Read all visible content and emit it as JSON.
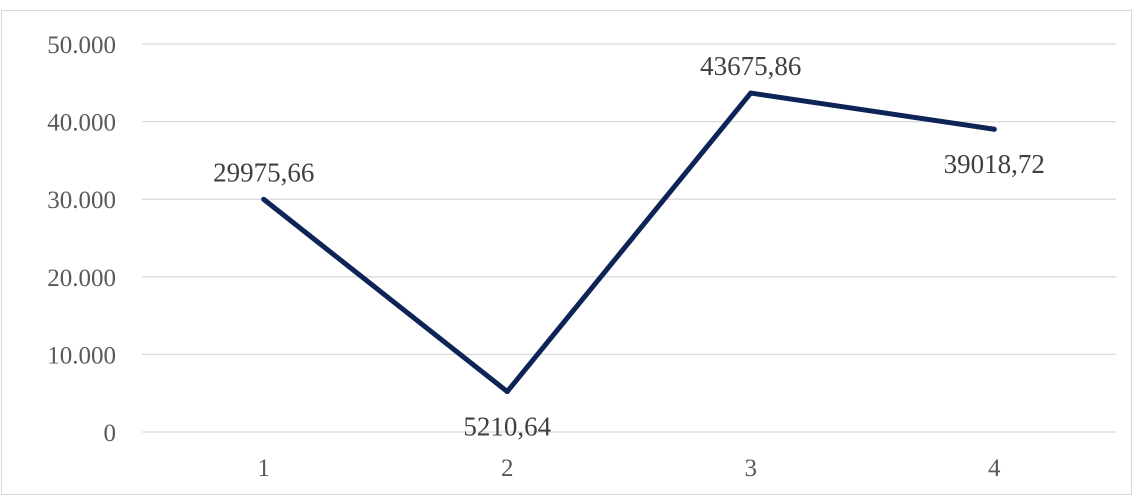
{
  "chart_data": {
    "type": "line",
    "title": "",
    "xlabel": "",
    "ylabel": "",
    "categories": [
      "1",
      "2",
      "3",
      "4"
    ],
    "series": [
      {
        "values": [
          29975.66,
          5210.64,
          43675.86,
          39018.72
        ],
        "data_labels": [
          "29975,66",
          "5210,64",
          "43675,86",
          "39018,72"
        ],
        "color": "#0e2457"
      }
    ],
    "ylim": [
      0,
      50000
    ],
    "yticks": [
      0,
      10000,
      20000,
      30000,
      40000,
      50000
    ],
    "ytick_labels": [
      "0",
      "10.000",
      "20.000",
      "30.000",
      "40.000",
      "50.000"
    ],
    "grid": true,
    "legend": "none",
    "gridline_color": "#d9d9d9"
  }
}
